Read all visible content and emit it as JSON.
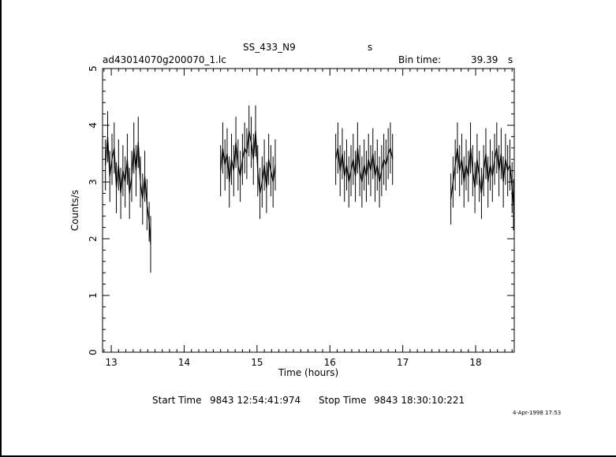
{
  "header": {
    "target": "SS_433_N9",
    "target_unit": "s",
    "file": "ad43014070g200070_1.lc",
    "bin_label": "Bin time:",
    "bin_value": "39.39",
    "bin_unit": "s"
  },
  "footer": {
    "start_label": "Start Time",
    "start_value": "9843 12:54:41:974",
    "stop_label": "Stop Time",
    "stop_value": "9843 18:30:10:221",
    "date_stamp": "4-Apr-1998 17:53"
  },
  "chart_data": {
    "type": "line",
    "title": "SS_433_N9",
    "xlabel": "Time (hours)",
    "ylabel": "Counts/s",
    "xlim": [
      12.88,
      18.53
    ],
    "ylim": [
      0,
      5
    ],
    "xticks": [
      "13",
      "14",
      "15",
      "16",
      "17",
      "18"
    ],
    "yticks": [
      "0",
      "1",
      "2",
      "3",
      "4",
      "5"
    ],
    "grid": false,
    "style": "binned light curve with vertical error bars",
    "segments": [
      {
        "name": "",
        "x_range": [
          12.9,
          13.55
        ],
        "points": [
          {
            "x": 12.92,
            "y": 3.3,
            "err": 0.45
          },
          {
            "x": 12.95,
            "y": 3.8,
            "err": 0.45
          },
          {
            "x": 12.98,
            "y": 3.1,
            "err": 0.45
          },
          {
            "x": 13.01,
            "y": 3.4,
            "err": 0.45
          },
          {
            "x": 13.04,
            "y": 3.6,
            "err": 0.45
          },
          {
            "x": 13.07,
            "y": 2.9,
            "err": 0.45
          },
          {
            "x": 13.1,
            "y": 3.3,
            "err": 0.45
          },
          {
            "x": 13.13,
            "y": 2.8,
            "err": 0.45
          },
          {
            "x": 13.16,
            "y": 3.2,
            "err": 0.45
          },
          {
            "x": 13.19,
            "y": 3.0,
            "err": 0.45
          },
          {
            "x": 13.22,
            "y": 3.4,
            "err": 0.45
          },
          {
            "x": 13.25,
            "y": 2.8,
            "err": 0.45
          },
          {
            "x": 13.28,
            "y": 3.1,
            "err": 0.45
          },
          {
            "x": 13.31,
            "y": 3.6,
            "err": 0.45
          },
          {
            "x": 13.34,
            "y": 3.2,
            "err": 0.45
          },
          {
            "x": 13.37,
            "y": 3.7,
            "err": 0.45
          },
          {
            "x": 13.4,
            "y": 3.0,
            "err": 0.45
          },
          {
            "x": 13.43,
            "y": 2.7,
            "err": 0.45
          },
          {
            "x": 13.46,
            "y": 3.1,
            "err": 0.45
          },
          {
            "x": 13.49,
            "y": 2.6,
            "err": 0.45
          },
          {
            "x": 13.52,
            "y": 2.3,
            "err": 0.35
          },
          {
            "x": 13.54,
            "y": 1.9,
            "err": 0.5
          }
        ]
      },
      {
        "name": "",
        "x_range": [
          14.5,
          15.25
        ],
        "points": [
          {
            "x": 14.5,
            "y": 3.2,
            "err": 0.45
          },
          {
            "x": 14.53,
            "y": 3.6,
            "err": 0.45
          },
          {
            "x": 14.56,
            "y": 3.3,
            "err": 0.45
          },
          {
            "x": 14.59,
            "y": 3.5,
            "err": 0.45
          },
          {
            "x": 14.62,
            "y": 3.0,
            "err": 0.45
          },
          {
            "x": 14.65,
            "y": 3.4,
            "err": 0.45
          },
          {
            "x": 14.68,
            "y": 3.2,
            "err": 0.45
          },
          {
            "x": 14.71,
            "y": 3.7,
            "err": 0.45
          },
          {
            "x": 14.74,
            "y": 3.3,
            "err": 0.45
          },
          {
            "x": 14.77,
            "y": 3.1,
            "err": 0.45
          },
          {
            "x": 14.8,
            "y": 3.4,
            "err": 0.45
          },
          {
            "x": 14.83,
            "y": 3.6,
            "err": 0.45
          },
          {
            "x": 14.86,
            "y": 3.5,
            "err": 0.45
          },
          {
            "x": 14.89,
            "y": 3.9,
            "err": 0.45
          },
          {
            "x": 14.92,
            "y": 3.7,
            "err": 0.45
          },
          {
            "x": 14.95,
            "y": 3.4,
            "err": 0.45
          },
          {
            "x": 14.98,
            "y": 3.9,
            "err": 0.45
          },
          {
            "x": 15.01,
            "y": 3.2,
            "err": 0.45
          },
          {
            "x": 15.04,
            "y": 2.8,
            "err": 0.45
          },
          {
            "x": 15.07,
            "y": 3.0,
            "err": 0.45
          },
          {
            "x": 15.1,
            "y": 3.3,
            "err": 0.45
          },
          {
            "x": 15.13,
            "y": 2.9,
            "err": 0.45
          },
          {
            "x": 15.16,
            "y": 3.4,
            "err": 0.45
          },
          {
            "x": 15.19,
            "y": 3.2,
            "err": 0.45
          },
          {
            "x": 15.22,
            "y": 3.0,
            "err": 0.45
          },
          {
            "x": 15.25,
            "y": 3.3,
            "err": 0.45
          }
        ]
      },
      {
        "name": "",
        "x_range": [
          16.08,
          16.87
        ],
        "points": [
          {
            "x": 16.08,
            "y": 3.4,
            "err": 0.45
          },
          {
            "x": 16.11,
            "y": 3.6,
            "err": 0.45
          },
          {
            "x": 16.14,
            "y": 3.2,
            "err": 0.45
          },
          {
            "x": 16.17,
            "y": 3.5,
            "err": 0.45
          },
          {
            "x": 16.2,
            "y": 3.1,
            "err": 0.45
          },
          {
            "x": 16.23,
            "y": 3.3,
            "err": 0.45
          },
          {
            "x": 16.26,
            "y": 3.0,
            "err": 0.45
          },
          {
            "x": 16.29,
            "y": 3.2,
            "err": 0.45
          },
          {
            "x": 16.32,
            "y": 3.4,
            "err": 0.45
          },
          {
            "x": 16.35,
            "y": 3.1,
            "err": 0.45
          },
          {
            "x": 16.38,
            "y": 3.6,
            "err": 0.45
          },
          {
            "x": 16.41,
            "y": 3.2,
            "err": 0.45
          },
          {
            "x": 16.44,
            "y": 3.0,
            "err": 0.45
          },
          {
            "x": 16.47,
            "y": 3.3,
            "err": 0.45
          },
          {
            "x": 16.5,
            "y": 3.1,
            "err": 0.45
          },
          {
            "x": 16.53,
            "y": 3.4,
            "err": 0.45
          },
          {
            "x": 16.56,
            "y": 3.2,
            "err": 0.45
          },
          {
            "x": 16.59,
            "y": 3.5,
            "err": 0.45
          },
          {
            "x": 16.62,
            "y": 3.1,
            "err": 0.45
          },
          {
            "x": 16.65,
            "y": 3.3,
            "err": 0.45
          },
          {
            "x": 16.68,
            "y": 3.0,
            "err": 0.45
          },
          {
            "x": 16.71,
            "y": 3.2,
            "err": 0.45
          },
          {
            "x": 16.74,
            "y": 3.4,
            "err": 0.45
          },
          {
            "x": 16.77,
            "y": 3.3,
            "err": 0.45
          },
          {
            "x": 16.8,
            "y": 3.5,
            "err": 0.45
          },
          {
            "x": 16.83,
            "y": 3.6,
            "err": 0.45
          },
          {
            "x": 16.86,
            "y": 3.4,
            "err": 0.45
          }
        ]
      },
      {
        "name": "",
        "x_range": [
          17.65,
          18.53
        ],
        "points": [
          {
            "x": 17.66,
            "y": 2.7,
            "err": 0.45
          },
          {
            "x": 17.69,
            "y": 3.0,
            "err": 0.45
          },
          {
            "x": 17.72,
            "y": 3.3,
            "err": 0.45
          },
          {
            "x": 17.75,
            "y": 3.6,
            "err": 0.45
          },
          {
            "x": 17.78,
            "y": 3.2,
            "err": 0.45
          },
          {
            "x": 17.81,
            "y": 3.4,
            "err": 0.45
          },
          {
            "x": 17.84,
            "y": 3.0,
            "err": 0.45
          },
          {
            "x": 17.87,
            "y": 3.3,
            "err": 0.45
          },
          {
            "x": 17.9,
            "y": 3.1,
            "err": 0.45
          },
          {
            "x": 17.93,
            "y": 3.6,
            "err": 0.45
          },
          {
            "x": 17.96,
            "y": 3.2,
            "err": 0.45
          },
          {
            "x": 17.99,
            "y": 2.9,
            "err": 0.45
          },
          {
            "x": 18.02,
            "y": 3.4,
            "err": 0.45
          },
          {
            "x": 18.05,
            "y": 3.1,
            "err": 0.45
          },
          {
            "x": 18.08,
            "y": 2.8,
            "err": 0.45
          },
          {
            "x": 18.11,
            "y": 3.2,
            "err": 0.45
          },
          {
            "x": 18.14,
            "y": 3.5,
            "err": 0.45
          },
          {
            "x": 18.17,
            "y": 3.0,
            "err": 0.45
          },
          {
            "x": 18.2,
            "y": 3.3,
            "err": 0.45
          },
          {
            "x": 18.23,
            "y": 3.1,
            "err": 0.45
          },
          {
            "x": 18.26,
            "y": 3.4,
            "err": 0.45
          },
          {
            "x": 18.29,
            "y": 3.6,
            "err": 0.45
          },
          {
            "x": 18.32,
            "y": 3.2,
            "err": 0.45
          },
          {
            "x": 18.35,
            "y": 3.5,
            "err": 0.45
          },
          {
            "x": 18.38,
            "y": 3.0,
            "err": 0.45
          },
          {
            "x": 18.41,
            "y": 3.4,
            "err": 0.45
          },
          {
            "x": 18.44,
            "y": 3.2,
            "err": 0.45
          },
          {
            "x": 18.47,
            "y": 3.3,
            "err": 0.45
          },
          {
            "x": 18.5,
            "y": 2.9,
            "err": 0.45
          },
          {
            "x": 18.52,
            "y": 2.6,
            "err": 0.45
          }
        ]
      }
    ]
  }
}
